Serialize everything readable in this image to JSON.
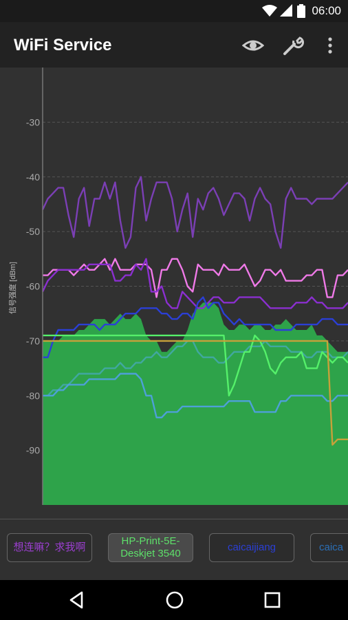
{
  "status_bar": {
    "time": "06:00",
    "icons": [
      "wifi-icon",
      "cellular-signal-icon",
      "battery-icon"
    ]
  },
  "app_bar": {
    "title": "WiFi Service",
    "actions": [
      "eye-icon",
      "wrench-icon",
      "more-vert-icon"
    ]
  },
  "chart": {
    "ylabel": "信号强度 [dBm]",
    "yticks": [
      "-30",
      "-40",
      "-50",
      "-60",
      "-70",
      "-80",
      "-90"
    ]
  },
  "chart_data": {
    "type": "line",
    "ylabel": "信号强度 [dBm]",
    "ylim": [
      -100,
      -20
    ],
    "grid": true,
    "x": [
      0,
      1,
      2,
      3,
      4,
      5,
      6,
      7,
      8,
      9,
      10,
      11,
      12,
      13,
      14,
      15,
      16,
      17,
      18,
      19,
      20,
      21,
      22,
      23,
      24,
      25,
      26,
      27,
      28,
      29,
      30,
      31,
      32,
      33,
      34,
      35,
      36,
      37,
      38,
      39,
      40,
      41,
      42,
      43,
      44,
      45,
      46,
      47,
      48,
      49,
      50,
      51,
      52,
      53,
      54,
      55,
      56,
      57,
      58,
      59
    ],
    "series": [
      {
        "color": "#7b3fb5",
        "values": [
          -46,
          -44,
          -43,
          -42,
          -42,
          -47,
          -51,
          -44,
          -42,
          -49,
          -44,
          -44,
          -41,
          -44,
          -41,
          -48,
          -53,
          -51,
          -42,
          -40,
          -48,
          -44,
          -41,
          -41,
          -41,
          -44,
          -50,
          -46,
          -43,
          -51,
          -44,
          -46,
          -43,
          -42,
          -44,
          -47,
          -45,
          -43,
          -43,
          -44,
          -48,
          -44,
          -42,
          -44,
          -45,
          -50,
          -53,
          -44,
          -42,
          -44,
          -44,
          -44,
          -45,
          -44,
          -44,
          -44,
          -44,
          -43,
          -42,
          -41
        ]
      },
      {
        "color": "#f07ae8",
        "values": [
          -58,
          -58,
          -57,
          -57,
          -57,
          -57,
          -58,
          -57,
          -56,
          -57,
          -57,
          -56,
          -55,
          -57,
          -55,
          -57,
          -57,
          -57,
          -56,
          -56,
          -56,
          -57,
          -62,
          -57,
          -57,
          -55,
          -55,
          -57,
          -60,
          -61,
          -56,
          -57,
          -57,
          -57,
          -58,
          -56,
          -57,
          -57,
          -57,
          -56,
          -58,
          -60,
          -59,
          -57,
          -57,
          -58,
          -57,
          -59,
          -59,
          -59,
          -59,
          -58,
          -58,
          -57,
          -57,
          -62,
          -62,
          -58,
          -58,
          -57
        ]
      },
      {
        "color": "#8b2fd0",
        "values": [
          -61,
          -59,
          -58,
          -57,
          -57,
          -57,
          -57,
          -57,
          -57,
          -56,
          -56,
          -56,
          -56,
          -56,
          -59,
          -59,
          -58,
          -58,
          -56,
          -57,
          -55,
          -61,
          -61,
          -60,
          -63,
          -64,
          -64,
          -61,
          -62,
          -63,
          -64,
          -64,
          -63,
          -62,
          -62,
          -63,
          -63,
          -63,
          -62,
          -62,
          -62,
          -62,
          -62,
          -63,
          -64,
          -64,
          -64,
          -64,
          -64,
          -63,
          -63,
          -63,
          -62,
          -63,
          -63,
          -64,
          -64,
          -64,
          -64,
          -63
        ]
      },
      {
        "color": "#2b3fd6",
        "values": [
          -73,
          -73,
          -70,
          -68,
          -68,
          -68,
          -68,
          -67,
          -67,
          -67,
          -67,
          -68,
          -67,
          -67,
          -67,
          -66,
          -65,
          -65,
          -65,
          -64,
          -64,
          -64,
          -64,
          -65,
          -65,
          -66,
          -66,
          -65,
          -65,
          -66,
          -63,
          -62,
          -64,
          -63,
          -63,
          -65,
          -66,
          -67,
          -66,
          -67,
          -67,
          -67,
          -67,
          -67,
          -67,
          -68,
          -68,
          -68,
          -68,
          -67,
          -67,
          -67,
          -67,
          -67,
          -66,
          -66,
          -66,
          -67,
          -67,
          -67
        ]
      },
      {
        "color": "#2ea34a",
        "values": [
          -70,
          -70,
          -70,
          -70,
          -69,
          -69,
          -69,
          -68,
          -68,
          -67,
          -66,
          -66,
          -66,
          -67,
          -66,
          -65,
          -66,
          -66,
          -65,
          -66,
          -69,
          -70,
          -70,
          -72,
          -72,
          -71,
          -70,
          -70,
          -68,
          -65,
          -64,
          -63,
          -63,
          -63,
          -64,
          -67,
          -68,
          -68,
          -67,
          -67,
          -68,
          -67,
          -67,
          -68,
          -68,
          -67,
          -67,
          -66,
          -67,
          -68,
          -68,
          -68,
          -67,
          -69,
          -69,
          -70,
          -71,
          -72,
          -72,
          -72
        ]
      },
      {
        "color": "#41a8a0",
        "values": [
          -80,
          -80,
          -79,
          -79,
          -78,
          -78,
          -77,
          -76,
          -76,
          -76,
          -76,
          -76,
          -75,
          -75,
          -75,
          -74,
          -75,
          -75,
          -74,
          -74,
          -73,
          -73,
          -72,
          -73,
          -73,
          -72,
          -71,
          -71,
          -70,
          -70,
          -72,
          -73,
          -73,
          -73,
          -74,
          -74,
          -73,
          -72,
          -72,
          -72,
          -71,
          -71,
          -71,
          -70,
          -71,
          -71,
          -71,
          -71,
          -72,
          -72,
          -72,
          -73,
          -73,
          -72,
          -72,
          -72,
          -73,
          -73,
          -73,
          -72
        ]
      },
      {
        "color": "#4ea0d8",
        "values": [
          -80,
          -80,
          -80,
          -79,
          -79,
          -78,
          -78,
          -78,
          -78,
          -77,
          -77,
          -77,
          -77,
          -77,
          -77,
          -76,
          -76,
          -76,
          -76,
          -77,
          -80,
          -80,
          -84,
          -84,
          -83,
          -83,
          -83,
          -82,
          -82,
          -82,
          -82,
          -82,
          -82,
          -82,
          -82,
          -82,
          -81,
          -81,
          -81,
          -81,
          -81,
          -83,
          -83,
          -83,
          -83,
          -83,
          -81,
          -81,
          -80,
          -80,
          -80,
          -80,
          -80,
          -80,
          -80,
          -81,
          -81,
          -80,
          -80,
          -80
        ]
      },
      {
        "color": "#55f06a",
        "values": [
          -69,
          -69,
          -69,
          -69,
          -69,
          -69,
          -69,
          -69,
          -69,
          -69,
          -69,
          -69,
          -69,
          -69,
          -69,
          -69,
          -69,
          -69,
          -69,
          -69,
          -69,
          -69,
          -69,
          -69,
          -69,
          -69,
          -69,
          -69,
          -69,
          -69,
          -69,
          -69,
          -69,
          -69,
          -69,
          -69,
          -80,
          -78,
          -75,
          -72,
          -72,
          -69,
          -70,
          -72,
          -75,
          -76,
          -74,
          -73,
          -73,
          -73,
          -72,
          -75,
          -75,
          -75,
          -72,
          -73,
          -74,
          -73,
          -73,
          -74
        ]
      },
      {
        "color": "#c7a13a",
        "values": [
          -70,
          -70,
          -70,
          -70,
          -70,
          -70,
          -70,
          -70,
          -70,
          -70,
          -70,
          -70,
          -70,
          -70,
          -70,
          -70,
          -70,
          -70,
          -70,
          -70,
          -70,
          -70,
          -70,
          -70,
          -70,
          -70,
          -70,
          -70,
          -70,
          -70,
          -70,
          -70,
          -70,
          -70,
          -70,
          -70,
          -70,
          -70,
          -70,
          -70,
          -70,
          -70,
          -70,
          -70,
          -70,
          -70,
          -70,
          -70,
          -70,
          -70,
          -70,
          -70,
          -70,
          -70,
          -70,
          -70,
          -89,
          -88,
          -88,
          -88
        ]
      }
    ],
    "fill_series_index": 4
  },
  "access_points": [
    {
      "label": "想连嘛？求我啊",
      "color": "#9b3fd0",
      "selected": false
    },
    {
      "label": "HP-Print-5E-\nDeskjet 3540",
      "color": "#5ee06a",
      "selected": true
    },
    {
      "label": "caicaijiang",
      "color": "#2b3fd6",
      "selected": false
    },
    {
      "label": "caica",
      "color": "#2b6fb6",
      "selected": false
    }
  ],
  "nav_bar": {
    "buttons": [
      "back-icon",
      "home-icon",
      "recents-icon"
    ]
  }
}
